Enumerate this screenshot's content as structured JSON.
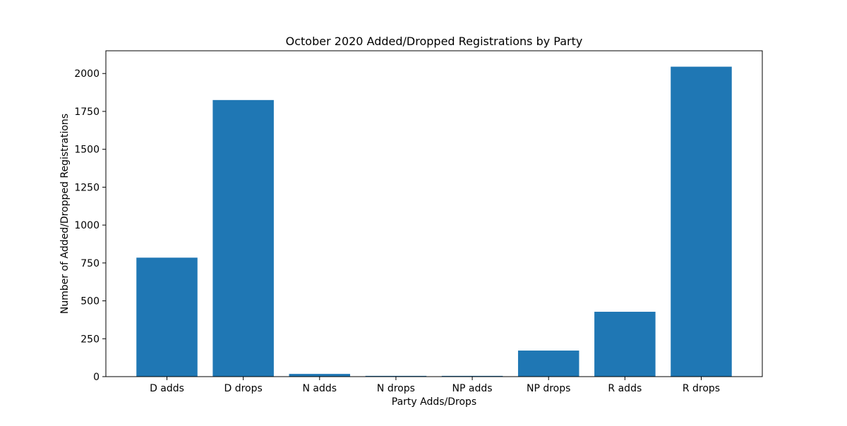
{
  "chart_data": {
    "type": "bar",
    "title": "October 2020 Added/Dropped Registrations by Party",
    "xlabel": "Party Adds/Drops",
    "ylabel": "Number of Added/Dropped Registrations",
    "categories": [
      "D adds",
      "D drops",
      "N adds",
      "N drops",
      "NP adds",
      "NP drops",
      "R adds",
      "R drops"
    ],
    "values": [
      785,
      1825,
      18,
      5,
      5,
      172,
      428,
      2045
    ],
    "ylim": [
      0,
      2150
    ],
    "yticks": [
      0,
      250,
      500,
      750,
      1000,
      1250,
      1500,
      1750,
      2000
    ],
    "bar_color": "#1f77b4",
    "grid": false,
    "legend": "none"
  }
}
